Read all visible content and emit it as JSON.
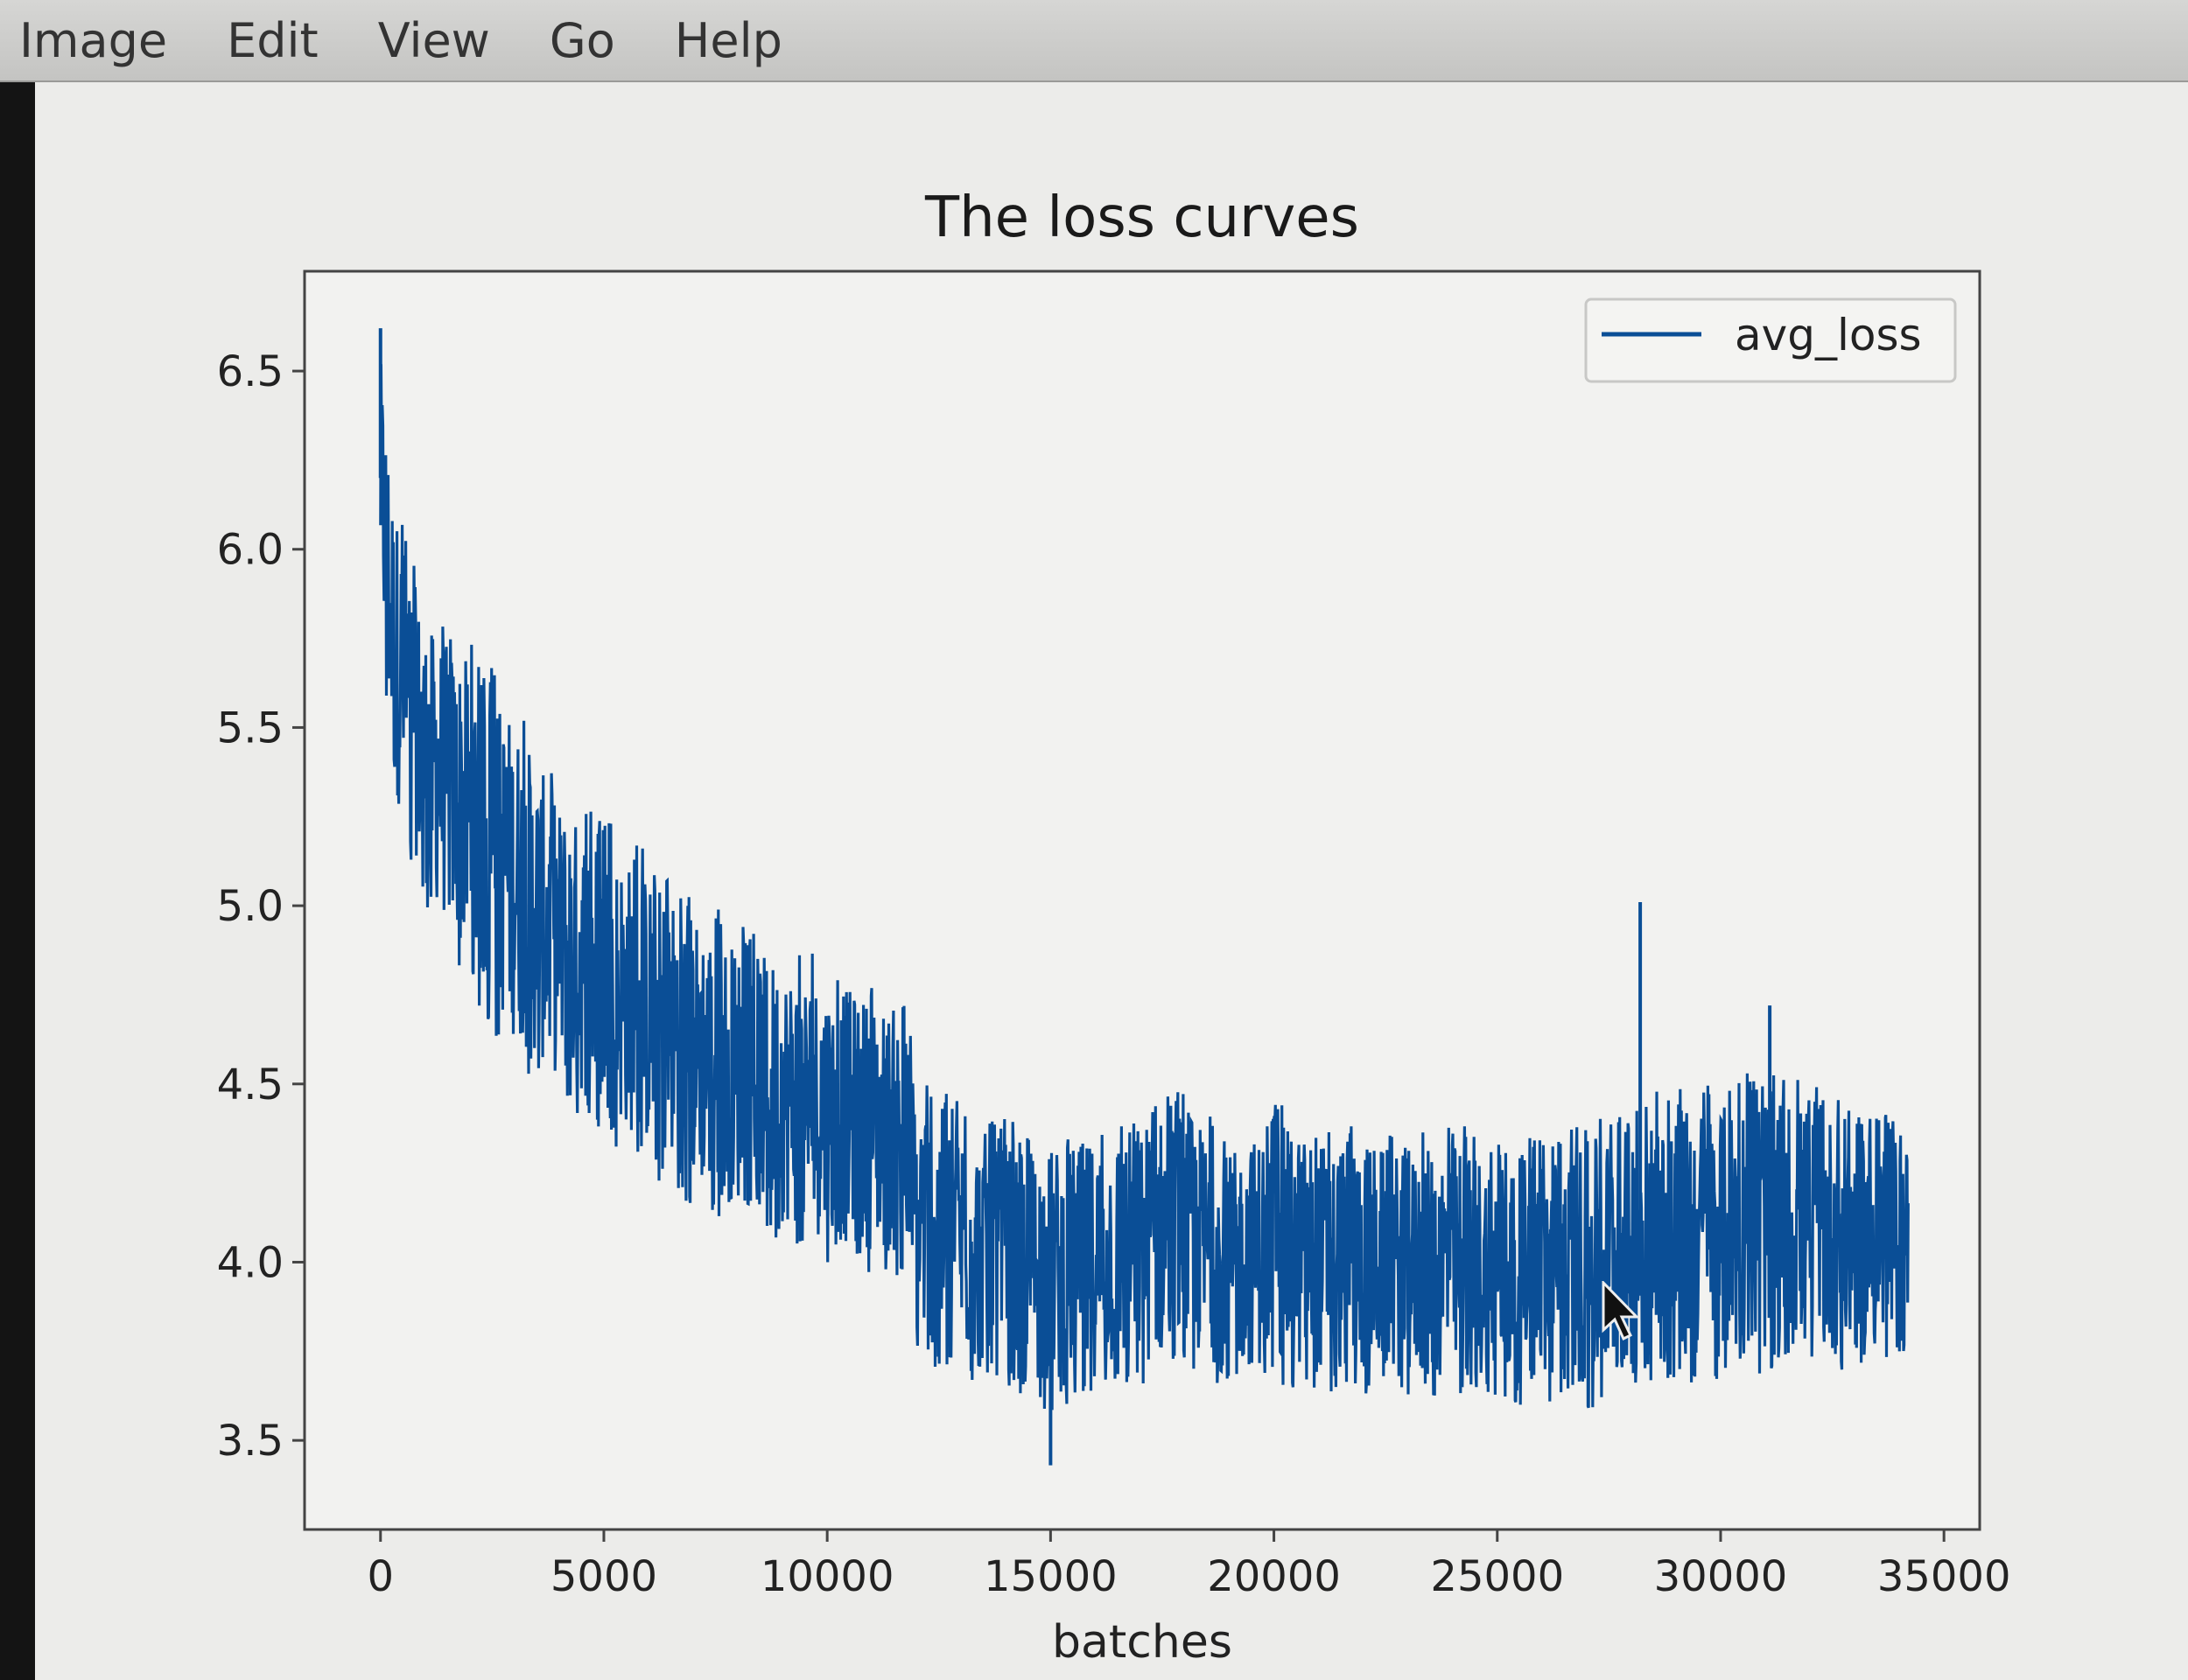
{
  "menubar": {
    "items": [
      "Image",
      "Edit",
      "View",
      "Go",
      "Help"
    ]
  },
  "colors": {
    "line": "#0a4e96",
    "background": "#ececea",
    "axis": "#444444"
  },
  "chart_data": {
    "type": "line",
    "title": "The loss curves",
    "xlabel": "batches",
    "ylabel": "",
    "xlim": [
      -1700,
      35800
    ],
    "ylim": [
      3.25,
      6.78
    ],
    "xticks": [
      0,
      5000,
      10000,
      15000,
      20000,
      25000,
      30000,
      35000
    ],
    "xtick_labels": [
      "0",
      "5000",
      "10000",
      "15000",
      "20000",
      "25000",
      "30000",
      "35000"
    ],
    "yticks": [
      3.5,
      4.0,
      4.5,
      5.0,
      5.5,
      6.0,
      6.5
    ],
    "ytick_labels": [
      "3.5",
      "4.0",
      "4.5",
      "5.0",
      "5.5",
      "6.0",
      "6.5"
    ],
    "grid": false,
    "legend_position": "top-right",
    "series": [
      {
        "name": "avg_loss",
        "x_range": [
          0,
          34200
        ],
        "envelope": {
          "x": [
            0,
            300,
            1000,
            2000,
            3000,
            4000,
            5000,
            6000,
            7000,
            8000,
            9000,
            10000,
            11000,
            11700,
            12000,
            13000,
            14000,
            15000,
            16000,
            17000,
            18000,
            19000,
            20000,
            21000,
            22000,
            23000,
            24000,
            25000,
            26000,
            27000,
            28000,
            29000,
            30000,
            31000,
            32000,
            33000,
            34200
          ],
          "upper": [
            6.6,
            6.2,
            5.85,
            5.75,
            5.6,
            5.35,
            5.25,
            5.15,
            5.05,
            4.95,
            4.9,
            4.85,
            4.8,
            4.75,
            4.55,
            4.45,
            4.4,
            4.38,
            4.4,
            4.45,
            4.5,
            4.35,
            4.45,
            4.4,
            4.4,
            4.35,
            4.4,
            4.35,
            4.35,
            4.4,
            4.45,
            4.5,
            4.5,
            4.55,
            4.5,
            4.45,
            4.4
          ],
          "lower": [
            5.8,
            5.25,
            5.0,
            4.75,
            4.55,
            4.45,
            4.35,
            4.25,
            4.15,
            4.1,
            4.05,
            4.0,
            3.97,
            3.95,
            3.72,
            3.67,
            3.64,
            3.58,
            3.62,
            3.65,
            3.68,
            3.65,
            3.65,
            3.63,
            3.63,
            3.62,
            3.6,
            3.6,
            3.6,
            3.58,
            3.62,
            3.65,
            3.67,
            3.68,
            3.68,
            3.68,
            3.68
          ]
        },
        "spikes": [
          {
            "x": 0,
            "y": 6.62
          },
          {
            "x": 15000,
            "y": 3.43
          },
          {
            "x": 28200,
            "y": 5.01
          },
          {
            "x": 31100,
            "y": 4.72
          }
        ]
      }
    ]
  }
}
